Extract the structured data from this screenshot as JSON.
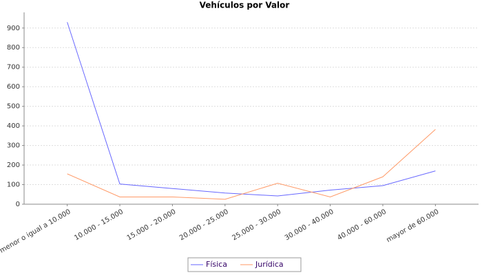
{
  "chart_data": {
    "type": "line",
    "title": "Vehículos por Valor",
    "categories": [
      "menor o igual a 10.000",
      "10.000 - 15.000",
      "15.000 - 20.000",
      "20.000 - 25.000",
      "25.000 - 30.000",
      "30.000 - 40.000",
      "40.000 - 60.000",
      "mayor de 60.000"
    ],
    "series": [
      {
        "name": "Física",
        "color": "#6666ff",
        "values": [
          930,
          103,
          80,
          57,
          42,
          72,
          95,
          170
        ]
      },
      {
        "name": "Jurídica",
        "color": "#ff9966",
        "values": [
          155,
          37,
          37,
          25,
          107,
          37,
          140,
          382
        ]
      }
    ],
    "ylim": [
      0,
      980
    ],
    "yticks": [
      0,
      100,
      200,
      300,
      400,
      500,
      600,
      700,
      800,
      900
    ],
    "grid": true,
    "legend": "bottom"
  }
}
